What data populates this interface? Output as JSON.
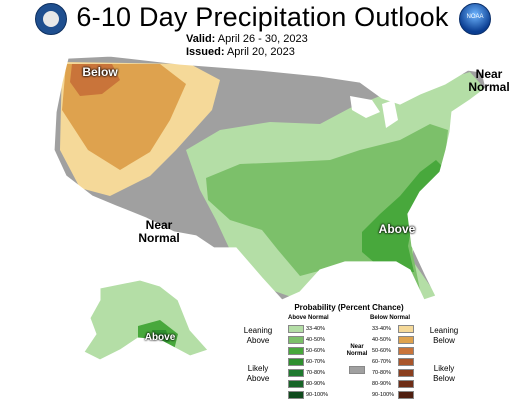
{
  "header": {
    "title": "6-10 Day Precipitation Outlook",
    "valid_label": "Valid:",
    "valid_value": "April 26 - 30, 2023",
    "issued_label": "Issued:",
    "issued_value": "April 20, 2023"
  },
  "logos": {
    "left": "department-of-commerce-seal",
    "right": "noaa-logo",
    "right_text": "NOAA"
  },
  "map_labels": {
    "below_northwest": "Below",
    "near_normal_west": "Near Normal",
    "near_normal_northeast": "Near Normal",
    "above_southeast": "Above",
    "above_alaska": "Above"
  },
  "colors": {
    "near_normal": "#a0a0a0",
    "above": [
      "#b4dea6",
      "#7cc06a",
      "#48a83c",
      "#2f8f2f",
      "#1f7a2f",
      "#176427",
      "#0f4a1c"
    ],
    "below": [
      "#f5d999",
      "#dea24e",
      "#c9743a",
      "#a9552a",
      "#8b3f1f",
      "#6e2d16",
      "#4f1f10"
    ]
  },
  "legend": {
    "title": "Probability (Percent Chance)",
    "above_header": "Above Normal",
    "below_header": "Below Normal",
    "near_normal_label": "Near Normal",
    "above_ranges": [
      "33-40%",
      "40-50%",
      "50-60%",
      "60-70%",
      "70-80%",
      "80-90%",
      "90-100%"
    ],
    "below_ranges": [
      "33-40%",
      "40-50%",
      "50-60%",
      "60-70%",
      "70-80%",
      "80-90%",
      "90-100%"
    ],
    "leaning_above": "Leaning Above",
    "likely_above": "Likely Above",
    "leaning_below": "Leaning Below",
    "likely_below": "Likely Below"
  }
}
